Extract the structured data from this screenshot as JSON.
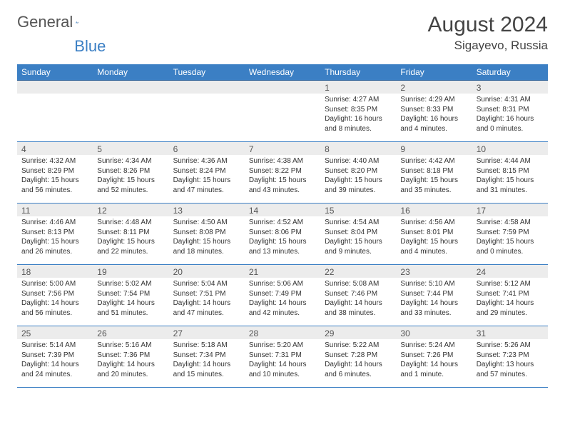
{
  "logo": {
    "text1": "General",
    "text2": "Blue"
  },
  "title": "August 2024",
  "location": "Sigayevo, Russia",
  "weekdays": [
    "Sunday",
    "Monday",
    "Tuesday",
    "Wednesday",
    "Thursday",
    "Friday",
    "Saturday"
  ],
  "colors": {
    "header_bg": "#3b7fc4",
    "header_text": "#ffffff",
    "row_border": "#3b7fc4",
    "daynum_bg": "#ececec",
    "body_text": "#333333",
    "logo_gray": "#555555",
    "logo_blue": "#3b7fc4"
  },
  "typography": {
    "month_title_fontsize": 30,
    "location_fontsize": 17,
    "weekday_fontsize": 12,
    "daynum_fontsize": 12,
    "cell_fontsize": 10
  },
  "weeks": [
    [
      null,
      null,
      null,
      null,
      {
        "n": "1",
        "sr": "4:27 AM",
        "ss": "8:35 PM",
        "dl": "16 hours and 8 minutes."
      },
      {
        "n": "2",
        "sr": "4:29 AM",
        "ss": "8:33 PM",
        "dl": "16 hours and 4 minutes."
      },
      {
        "n": "3",
        "sr": "4:31 AM",
        "ss": "8:31 PM",
        "dl": "16 hours and 0 minutes."
      }
    ],
    [
      {
        "n": "4",
        "sr": "4:32 AM",
        "ss": "8:29 PM",
        "dl": "15 hours and 56 minutes."
      },
      {
        "n": "5",
        "sr": "4:34 AM",
        "ss": "8:26 PM",
        "dl": "15 hours and 52 minutes."
      },
      {
        "n": "6",
        "sr": "4:36 AM",
        "ss": "8:24 PM",
        "dl": "15 hours and 47 minutes."
      },
      {
        "n": "7",
        "sr": "4:38 AM",
        "ss": "8:22 PM",
        "dl": "15 hours and 43 minutes."
      },
      {
        "n": "8",
        "sr": "4:40 AM",
        "ss": "8:20 PM",
        "dl": "15 hours and 39 minutes."
      },
      {
        "n": "9",
        "sr": "4:42 AM",
        "ss": "8:18 PM",
        "dl": "15 hours and 35 minutes."
      },
      {
        "n": "10",
        "sr": "4:44 AM",
        "ss": "8:15 PM",
        "dl": "15 hours and 31 minutes."
      }
    ],
    [
      {
        "n": "11",
        "sr": "4:46 AM",
        "ss": "8:13 PM",
        "dl": "15 hours and 26 minutes."
      },
      {
        "n": "12",
        "sr": "4:48 AM",
        "ss": "8:11 PM",
        "dl": "15 hours and 22 minutes."
      },
      {
        "n": "13",
        "sr": "4:50 AM",
        "ss": "8:08 PM",
        "dl": "15 hours and 18 minutes."
      },
      {
        "n": "14",
        "sr": "4:52 AM",
        "ss": "8:06 PM",
        "dl": "15 hours and 13 minutes."
      },
      {
        "n": "15",
        "sr": "4:54 AM",
        "ss": "8:04 PM",
        "dl": "15 hours and 9 minutes."
      },
      {
        "n": "16",
        "sr": "4:56 AM",
        "ss": "8:01 PM",
        "dl": "15 hours and 4 minutes."
      },
      {
        "n": "17",
        "sr": "4:58 AM",
        "ss": "7:59 PM",
        "dl": "15 hours and 0 minutes."
      }
    ],
    [
      {
        "n": "18",
        "sr": "5:00 AM",
        "ss": "7:56 PM",
        "dl": "14 hours and 56 minutes."
      },
      {
        "n": "19",
        "sr": "5:02 AM",
        "ss": "7:54 PM",
        "dl": "14 hours and 51 minutes."
      },
      {
        "n": "20",
        "sr": "5:04 AM",
        "ss": "7:51 PM",
        "dl": "14 hours and 47 minutes."
      },
      {
        "n": "21",
        "sr": "5:06 AM",
        "ss": "7:49 PM",
        "dl": "14 hours and 42 minutes."
      },
      {
        "n": "22",
        "sr": "5:08 AM",
        "ss": "7:46 PM",
        "dl": "14 hours and 38 minutes."
      },
      {
        "n": "23",
        "sr": "5:10 AM",
        "ss": "7:44 PM",
        "dl": "14 hours and 33 minutes."
      },
      {
        "n": "24",
        "sr": "5:12 AM",
        "ss": "7:41 PM",
        "dl": "14 hours and 29 minutes."
      }
    ],
    [
      {
        "n": "25",
        "sr": "5:14 AM",
        "ss": "7:39 PM",
        "dl": "14 hours and 24 minutes."
      },
      {
        "n": "26",
        "sr": "5:16 AM",
        "ss": "7:36 PM",
        "dl": "14 hours and 20 minutes."
      },
      {
        "n": "27",
        "sr": "5:18 AM",
        "ss": "7:34 PM",
        "dl": "14 hours and 15 minutes."
      },
      {
        "n": "28",
        "sr": "5:20 AM",
        "ss": "7:31 PM",
        "dl": "14 hours and 10 minutes."
      },
      {
        "n": "29",
        "sr": "5:22 AM",
        "ss": "7:28 PM",
        "dl": "14 hours and 6 minutes."
      },
      {
        "n": "30",
        "sr": "5:24 AM",
        "ss": "7:26 PM",
        "dl": "14 hours and 1 minute."
      },
      {
        "n": "31",
        "sr": "5:26 AM",
        "ss": "7:23 PM",
        "dl": "13 hours and 57 minutes."
      }
    ]
  ],
  "labels": {
    "sunrise": "Sunrise: ",
    "sunset": "Sunset: ",
    "daylight": "Daylight: "
  }
}
